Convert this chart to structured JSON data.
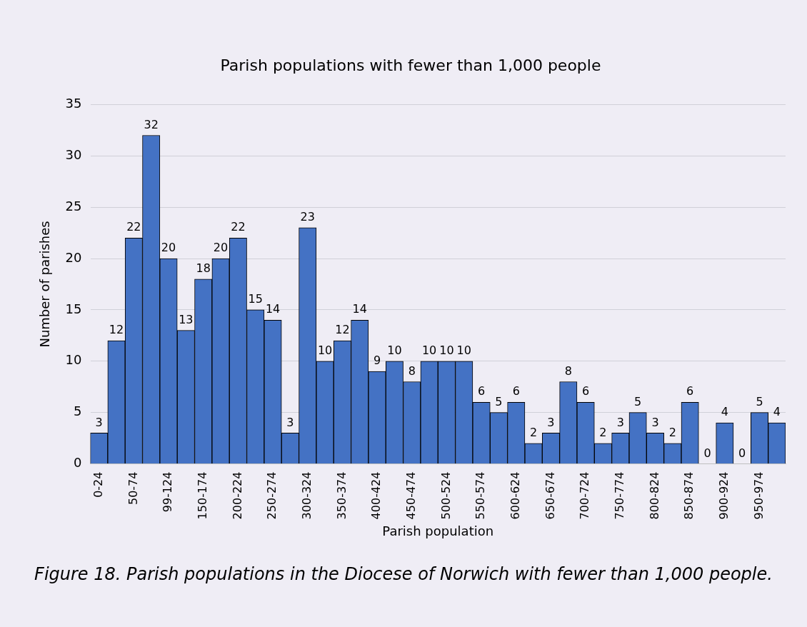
{
  "chart_data": {
    "type": "bar",
    "title": "Parish populations with fewer than 1,000 people",
    "xlabel": "Parish population",
    "ylabel": "Number of parishes",
    "categories": [
      "0-24",
      null,
      "50-74",
      null,
      "99-124",
      null,
      "150-174",
      null,
      "200-224",
      null,
      "250-274",
      null,
      "300-324",
      null,
      "350-374",
      null,
      "400-424",
      null,
      "450-474",
      null,
      "500-524",
      null,
      "550-574",
      null,
      "600-624",
      null,
      "650-674",
      null,
      "700-724",
      null,
      "750-774",
      null,
      "800-824",
      null,
      "850-874",
      null,
      "900-924",
      null,
      "950-974",
      null
    ],
    "values": [
      3,
      12,
      22,
      32,
      20,
      13,
      18,
      20,
      22,
      15,
      14,
      3,
      23,
      10,
      12,
      14,
      9,
      10,
      8,
      10,
      10,
      10,
      6,
      5,
      6,
      2,
      3,
      8,
      6,
      2,
      3,
      5,
      3,
      2,
      6,
      0,
      4,
      0,
      5,
      4
    ],
    "color": "#4472c4",
    "ylim": [
      0,
      35
    ],
    "yticks": [
      0,
      5,
      10,
      15,
      20,
      25,
      30,
      35
    ],
    "grid": "y",
    "data_labels": true,
    "annotations": [
      "Figure 18. Parish populations in the Diocese of Norwich with fewer than 1,000 people."
    ]
  }
}
